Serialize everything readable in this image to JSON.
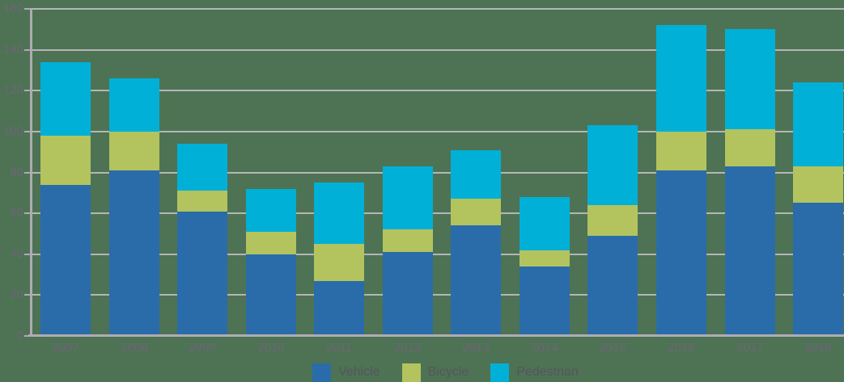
{
  "chart_data": {
    "type": "bar",
    "stacked": true,
    "title": "",
    "xlabel": "",
    "ylabel": "",
    "categories": [
      "2007",
      "2008",
      "2009",
      "2010",
      "2011",
      "2012",
      "2013",
      "2014",
      "2015",
      "2016",
      "2017",
      "2018"
    ],
    "series": [
      {
        "name": "Vehicle",
        "color": "#2a6caa",
        "values": [
          74,
          81,
          61,
          40,
          27,
          41,
          54,
          34,
          49,
          81,
          83,
          65
        ]
      },
      {
        "name": "Bicycle",
        "color": "#b3c35e",
        "values": [
          24,
          19,
          10,
          11,
          18,
          11,
          13,
          8,
          15,
          19,
          18,
          18
        ]
      },
      {
        "name": "Pedestrian",
        "color": "#00b0d6",
        "values": [
          36,
          26,
          23,
          21,
          30,
          31,
          24,
          26,
          39,
          52,
          49,
          41
        ]
      }
    ],
    "totals": [
      134,
      126,
      94,
      72,
      75,
      83,
      91,
      68,
      103,
      152,
      150,
      124
    ],
    "ylim": [
      0,
      160
    ],
    "ytick_step": 20,
    "y_tick_labels": [
      "0",
      "20",
      "40",
      "60",
      "80",
      "100",
      "120",
      "140",
      "160"
    ],
    "grid": true,
    "legend_position": "bottom"
  },
  "colors": {
    "background": "#4d7354",
    "gridline": "#b5b5b8",
    "axis_line": "#aeacb2",
    "tick_label": "#6f6478",
    "legend_label": "#56555e"
  }
}
